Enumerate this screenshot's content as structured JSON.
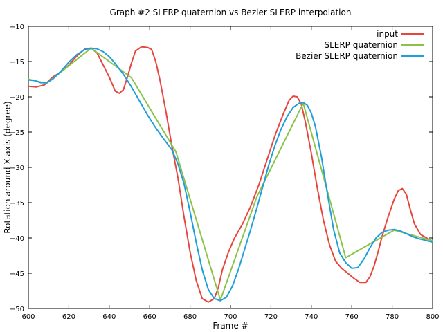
{
  "chart_data": {
    "type": "line",
    "title": "Graph #2 SLERP quaternion vs Bezier SLERP interpolation",
    "xlabel": "Frame #",
    "ylabel": "Rotation around X axis (degree)",
    "xlim": [
      600,
      800
    ],
    "ylim": [
      -50,
      -10
    ],
    "xticks": [
      600,
      620,
      640,
      660,
      680,
      700,
      720,
      740,
      760,
      780,
      800
    ],
    "yticks": [
      -50,
      -45,
      -40,
      -35,
      -30,
      -25,
      -20,
      -15,
      -10
    ],
    "xtick_labels": [
      "600",
      "620",
      "640",
      "660",
      "680",
      "700",
      "720",
      "740",
      "760",
      "780",
      "800"
    ],
    "ytick_labels": [
      "−50",
      "−45",
      "−40",
      "−35",
      "−30",
      "−25",
      "−20",
      "−15",
      "−10"
    ],
    "grid": false,
    "legend_position": "top-right",
    "series": [
      {
        "name": "input",
        "color": "#e8463d",
        "x": [
          600,
          604,
          608,
          612,
          616,
          620,
          624,
          628,
          631,
          634,
          637,
          640,
          643,
          645,
          647,
          649,
          651,
          653,
          656,
          659,
          661,
          663,
          665,
          668,
          671,
          674,
          677,
          680,
          683,
          686,
          689,
          692,
          694,
          696,
          699,
          702,
          706,
          710,
          714,
          718,
          722,
          726,
          729,
          731,
          733,
          735,
          737,
          740,
          743,
          746,
          749,
          752,
          755,
          758,
          761,
          764,
          767,
          769,
          771,
          773,
          775,
          778,
          781,
          783,
          785,
          787,
          789,
          791,
          794,
          797,
          800
        ],
        "y": [
          -18.5,
          -18.6,
          -18.3,
          -17.2,
          -16.5,
          -15.5,
          -14.2,
          -13.2,
          -13.1,
          -13.8,
          -15.5,
          -17.2,
          -19.2,
          -19.5,
          -19.0,
          -17.2,
          -15.2,
          -13.5,
          -12.9,
          -13.0,
          -13.3,
          -15.0,
          -17.5,
          -22.0,
          -27.0,
          -31.5,
          -37.0,
          -42.0,
          -46.0,
          -48.6,
          -49.1,
          -48.6,
          -47.0,
          -44.5,
          -42.0,
          -40.0,
          -38.0,
          -35.5,
          -32.5,
          -29.0,
          -25.5,
          -22.5,
          -20.5,
          -19.9,
          -20.0,
          -21.0,
          -23.5,
          -28.0,
          -33.0,
          -37.5,
          -41.0,
          -43.3,
          -44.3,
          -45.0,
          -45.7,
          -46.3,
          -46.3,
          -45.5,
          -44.0,
          -42.0,
          -39.8,
          -37.0,
          -34.5,
          -33.3,
          -33.0,
          -33.8,
          -36.0,
          -38.0,
          -39.5,
          -40.0,
          -40.5
        ]
      },
      {
        "name": "SLERP quaternion",
        "color": "#8bc34a",
        "x": [
          600,
          609,
          631,
          651,
          673,
          695,
          713,
          736,
          757,
          781,
          800
        ],
        "y": [
          -17.5,
          -18.1,
          -13.1,
          -17.3,
          -27.8,
          -48.8,
          -34.2,
          -20.9,
          -42.8,
          -38.9,
          -40.4
        ]
      },
      {
        "name": "Bezier SLERP quaternion",
        "color": "#1e9edb",
        "x": [
          600,
          603,
          606,
          609,
          612,
          616,
          620,
          624,
          628,
          631,
          634,
          637,
          640,
          643,
          647,
          651,
          655,
          659,
          663,
          667,
          671,
          674,
          677,
          680,
          683,
          686,
          689,
          692,
          695,
          698,
          701,
          704,
          707,
          710,
          713,
          716,
          719,
          722,
          725,
          728,
          731,
          734,
          736,
          738,
          740,
          742,
          745,
          748,
          751,
          754,
          757,
          760,
          763,
          766,
          769,
          772,
          775,
          778,
          781,
          784,
          787,
          790,
          793,
          796,
          800
        ],
        "y": [
          -17.6,
          -17.7,
          -18.0,
          -18.0,
          -17.5,
          -16.4,
          -15.1,
          -14.0,
          -13.3,
          -13.1,
          -13.2,
          -13.6,
          -14.3,
          -15.3,
          -16.8,
          -18.6,
          -20.6,
          -22.6,
          -24.4,
          -26.0,
          -27.5,
          -29.5,
          -32.3,
          -36.3,
          -40.6,
          -44.5,
          -47.3,
          -48.6,
          -48.9,
          -48.4,
          -46.8,
          -44.4,
          -41.6,
          -38.8,
          -35.8,
          -32.7,
          -29.6,
          -26.9,
          -24.6,
          -22.8,
          -21.5,
          -20.9,
          -20.8,
          -21.2,
          -22.3,
          -24.2,
          -28.5,
          -33.8,
          -38.8,
          -42.1,
          -43.5,
          -44.3,
          -44.2,
          -43.0,
          -41.4,
          -40.0,
          -39.2,
          -38.9,
          -38.8,
          -39.0,
          -39.4,
          -39.8,
          -40.1,
          -40.3,
          -40.6
        ]
      }
    ]
  }
}
